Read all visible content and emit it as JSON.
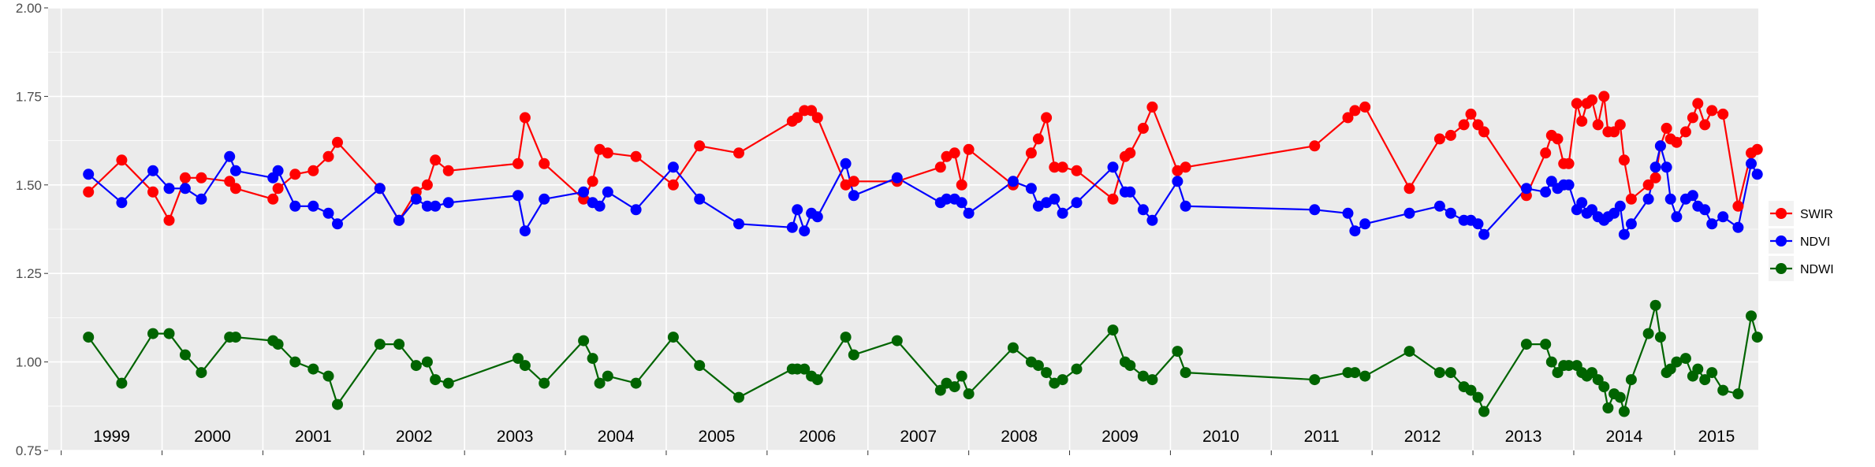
{
  "chart_data": {
    "type": "line",
    "title": "",
    "xlabel": "",
    "ylabel": "",
    "ylim": [
      0.75,
      2.0
    ],
    "yticks": [
      "0.75",
      "1.00",
      "1.25",
      "1.50",
      "1.75",
      "2.00"
    ],
    "year_labels": [
      "1999",
      "2000",
      "2001",
      "2002",
      "2003",
      "2004",
      "2005",
      "2006",
      "2007",
      "2008",
      "2009",
      "2010",
      "2011",
      "2012",
      "2013",
      "2014",
      "2015"
    ],
    "x_range": [
      1998.87,
      2015.83
    ],
    "grid": true,
    "legend_position": "right",
    "series": [
      {
        "name": "SWIR",
        "color": "#ff0000",
        "points": [
          [
            1999.27,
            1.48
          ],
          [
            1999.6,
            1.57
          ],
          [
            1999.91,
            1.48
          ],
          [
            2000.07,
            1.4
          ],
          [
            2000.23,
            1.52
          ],
          [
            2000.39,
            1.52
          ],
          [
            2000.67,
            1.51
          ],
          [
            2000.73,
            1.49
          ],
          [
            2001.1,
            1.46
          ],
          [
            2001.15,
            1.49
          ],
          [
            2001.32,
            1.53
          ],
          [
            2001.5,
            1.54
          ],
          [
            2001.65,
            1.58
          ],
          [
            2001.74,
            1.62
          ],
          [
            2002.16,
            1.49
          ],
          [
            2002.35,
            1.4
          ],
          [
            2002.52,
            1.48
          ],
          [
            2002.63,
            1.5
          ],
          [
            2002.71,
            1.57
          ],
          [
            2002.84,
            1.54
          ],
          [
            2003.53,
            1.56
          ],
          [
            2003.6,
            1.69
          ],
          [
            2003.79,
            1.56
          ],
          [
            2004.18,
            1.46
          ],
          [
            2004.27,
            1.51
          ],
          [
            2004.34,
            1.6
          ],
          [
            2004.42,
            1.59
          ],
          [
            2004.7,
            1.58
          ],
          [
            2005.07,
            1.5
          ],
          [
            2005.33,
            1.61
          ],
          [
            2005.72,
            1.59
          ],
          [
            2006.25,
            1.68
          ],
          [
            2006.3,
            1.69
          ],
          [
            2006.37,
            1.71
          ],
          [
            2006.44,
            1.71
          ],
          [
            2006.5,
            1.69
          ],
          [
            2006.78,
            1.5
          ],
          [
            2006.86,
            1.51
          ],
          [
            2007.29,
            1.51
          ],
          [
            2007.72,
            1.55
          ],
          [
            2007.78,
            1.58
          ],
          [
            2007.86,
            1.59
          ],
          [
            2007.93,
            1.5
          ],
          [
            2008.0,
            1.6
          ],
          [
            2008.44,
            1.5
          ],
          [
            2008.62,
            1.59
          ],
          [
            2008.69,
            1.63
          ],
          [
            2008.77,
            1.69
          ],
          [
            2008.85,
            1.55
          ],
          [
            2008.93,
            1.55
          ],
          [
            2009.07,
            1.54
          ],
          [
            2009.43,
            1.46
          ],
          [
            2009.55,
            1.58
          ],
          [
            2009.6,
            1.59
          ],
          [
            2009.73,
            1.66
          ],
          [
            2009.82,
            1.72
          ],
          [
            2010.07,
            1.54
          ],
          [
            2010.15,
            1.55
          ],
          [
            2011.43,
            1.61
          ],
          [
            2011.76,
            1.69
          ],
          [
            2011.83,
            1.71
          ],
          [
            2011.93,
            1.72
          ],
          [
            2012.37,
            1.49
          ],
          [
            2012.67,
            1.63
          ],
          [
            2012.78,
            1.64
          ],
          [
            2012.91,
            1.67
          ],
          [
            2012.98,
            1.7
          ],
          [
            2013.05,
            1.67
          ],
          [
            2013.11,
            1.65
          ],
          [
            2013.53,
            1.47
          ],
          [
            2013.72,
            1.59
          ],
          [
            2013.78,
            1.64
          ],
          [
            2013.84,
            1.63
          ],
          [
            2013.9,
            1.56
          ],
          [
            2013.95,
            1.56
          ],
          [
            2014.03,
            1.73
          ],
          [
            2014.08,
            1.68
          ],
          [
            2014.13,
            1.73
          ],
          [
            2014.18,
            1.74
          ],
          [
            2014.24,
            1.67
          ],
          [
            2014.3,
            1.75
          ],
          [
            2014.34,
            1.65
          ],
          [
            2014.4,
            1.65
          ],
          [
            2014.46,
            1.67
          ],
          [
            2014.5,
            1.57
          ],
          [
            2014.57,
            1.46
          ],
          [
            2014.74,
            1.5
          ],
          [
            2014.81,
            1.52
          ],
          [
            2014.86,
            1.61
          ],
          [
            2014.92,
            1.66
          ],
          [
            2014.96,
            1.63
          ],
          [
            2015.02,
            1.62
          ],
          [
            2015.11,
            1.65
          ],
          [
            2015.18,
            1.69
          ],
          [
            2015.23,
            1.73
          ],
          [
            2015.3,
            1.67
          ],
          [
            2015.37,
            1.71
          ],
          [
            2015.48,
            1.7
          ],
          [
            2015.63,
            1.44
          ],
          [
            2015.76,
            1.59
          ],
          [
            2015.82,
            1.6
          ]
        ]
      },
      {
        "name": "NDVI",
        "color": "#0000ff",
        "points": [
          [
            1999.27,
            1.53
          ],
          [
            1999.6,
            1.45
          ],
          [
            1999.91,
            1.54
          ],
          [
            2000.07,
            1.49
          ],
          [
            2000.23,
            1.49
          ],
          [
            2000.39,
            1.46
          ],
          [
            2000.67,
            1.58
          ],
          [
            2000.73,
            1.54
          ],
          [
            2001.1,
            1.52
          ],
          [
            2001.15,
            1.54
          ],
          [
            2001.32,
            1.44
          ],
          [
            2001.5,
            1.44
          ],
          [
            2001.65,
            1.42
          ],
          [
            2001.74,
            1.39
          ],
          [
            2002.16,
            1.49
          ],
          [
            2002.35,
            1.4
          ],
          [
            2002.52,
            1.46
          ],
          [
            2002.63,
            1.44
          ],
          [
            2002.71,
            1.44
          ],
          [
            2002.84,
            1.45
          ],
          [
            2003.53,
            1.47
          ],
          [
            2003.6,
            1.37
          ],
          [
            2003.79,
            1.46
          ],
          [
            2004.18,
            1.48
          ],
          [
            2004.27,
            1.45
          ],
          [
            2004.34,
            1.44
          ],
          [
            2004.42,
            1.48
          ],
          [
            2004.7,
            1.43
          ],
          [
            2005.07,
            1.55
          ],
          [
            2005.33,
            1.46
          ],
          [
            2005.72,
            1.39
          ],
          [
            2006.25,
            1.38
          ],
          [
            2006.3,
            1.43
          ],
          [
            2006.37,
            1.37
          ],
          [
            2006.44,
            1.42
          ],
          [
            2006.5,
            1.41
          ],
          [
            2006.78,
            1.56
          ],
          [
            2006.86,
            1.47
          ],
          [
            2007.29,
            1.52
          ],
          [
            2007.72,
            1.45
          ],
          [
            2007.78,
            1.46
          ],
          [
            2007.86,
            1.46
          ],
          [
            2007.93,
            1.45
          ],
          [
            2008.0,
            1.42
          ],
          [
            2008.44,
            1.51
          ],
          [
            2008.62,
            1.49
          ],
          [
            2008.69,
            1.44
          ],
          [
            2008.77,
            1.45
          ],
          [
            2008.85,
            1.46
          ],
          [
            2008.93,
            1.42
          ],
          [
            2009.07,
            1.45
          ],
          [
            2009.43,
            1.55
          ],
          [
            2009.55,
            1.48
          ],
          [
            2009.6,
            1.48
          ],
          [
            2009.73,
            1.43
          ],
          [
            2009.82,
            1.4
          ],
          [
            2010.07,
            1.51
          ],
          [
            2010.15,
            1.44
          ],
          [
            2011.43,
            1.43
          ],
          [
            2011.76,
            1.42
          ],
          [
            2011.83,
            1.37
          ],
          [
            2011.93,
            1.39
          ],
          [
            2012.37,
            1.42
          ],
          [
            2012.67,
            1.44
          ],
          [
            2012.78,
            1.42
          ],
          [
            2012.91,
            1.4
          ],
          [
            2012.98,
            1.4
          ],
          [
            2013.05,
            1.39
          ],
          [
            2013.11,
            1.36
          ],
          [
            2013.53,
            1.49
          ],
          [
            2013.72,
            1.48
          ],
          [
            2013.78,
            1.51
          ],
          [
            2013.84,
            1.49
          ],
          [
            2013.9,
            1.5
          ],
          [
            2013.95,
            1.5
          ],
          [
            2014.03,
            1.43
          ],
          [
            2014.08,
            1.45
          ],
          [
            2014.13,
            1.42
          ],
          [
            2014.18,
            1.43
          ],
          [
            2014.24,
            1.41
          ],
          [
            2014.3,
            1.4
          ],
          [
            2014.34,
            1.41
          ],
          [
            2014.4,
            1.42
          ],
          [
            2014.46,
            1.44
          ],
          [
            2014.5,
            1.36
          ],
          [
            2014.57,
            1.39
          ],
          [
            2014.74,
            1.46
          ],
          [
            2014.81,
            1.55
          ],
          [
            2014.86,
            1.61
          ],
          [
            2014.92,
            1.55
          ],
          [
            2014.96,
            1.46
          ],
          [
            2015.02,
            1.41
          ],
          [
            2015.11,
            1.46
          ],
          [
            2015.18,
            1.47
          ],
          [
            2015.23,
            1.44
          ],
          [
            2015.3,
            1.43
          ],
          [
            2015.37,
            1.39
          ],
          [
            2015.48,
            1.41
          ],
          [
            2015.63,
            1.38
          ],
          [
            2015.76,
            1.56
          ],
          [
            2015.82,
            1.53
          ]
        ]
      },
      {
        "name": "NDWI",
        "color": "#006400",
        "points": [
          [
            1999.27,
            1.07
          ],
          [
            1999.6,
            0.94
          ],
          [
            1999.91,
            1.08
          ],
          [
            2000.07,
            1.08
          ],
          [
            2000.23,
            1.02
          ],
          [
            2000.39,
            0.97
          ],
          [
            2000.67,
            1.07
          ],
          [
            2000.73,
            1.07
          ],
          [
            2001.1,
            1.06
          ],
          [
            2001.15,
            1.05
          ],
          [
            2001.32,
            1.0
          ],
          [
            2001.5,
            0.98
          ],
          [
            2001.65,
            0.96
          ],
          [
            2001.74,
            0.88
          ],
          [
            2002.16,
            1.05
          ],
          [
            2002.35,
            1.05
          ],
          [
            2002.52,
            0.99
          ],
          [
            2002.63,
            1.0
          ],
          [
            2002.71,
            0.95
          ],
          [
            2002.84,
            0.94
          ],
          [
            2003.53,
            1.01
          ],
          [
            2003.6,
            0.99
          ],
          [
            2003.79,
            0.94
          ],
          [
            2004.18,
            1.06
          ],
          [
            2004.27,
            1.01
          ],
          [
            2004.34,
            0.94
          ],
          [
            2004.42,
            0.96
          ],
          [
            2004.7,
            0.94
          ],
          [
            2005.07,
            1.07
          ],
          [
            2005.33,
            0.99
          ],
          [
            2005.72,
            0.9
          ],
          [
            2006.25,
            0.98
          ],
          [
            2006.3,
            0.98
          ],
          [
            2006.37,
            0.98
          ],
          [
            2006.44,
            0.96
          ],
          [
            2006.5,
            0.95
          ],
          [
            2006.78,
            1.07
          ],
          [
            2006.86,
            1.02
          ],
          [
            2007.29,
            1.06
          ],
          [
            2007.72,
            0.92
          ],
          [
            2007.78,
            0.94
          ],
          [
            2007.86,
            0.93
          ],
          [
            2007.93,
            0.96
          ],
          [
            2008.0,
            0.91
          ],
          [
            2008.44,
            1.04
          ],
          [
            2008.62,
            1.0
          ],
          [
            2008.69,
            0.99
          ],
          [
            2008.77,
            0.97
          ],
          [
            2008.85,
            0.94
          ],
          [
            2008.93,
            0.95
          ],
          [
            2009.07,
            0.98
          ],
          [
            2009.43,
            1.09
          ],
          [
            2009.55,
            1.0
          ],
          [
            2009.6,
            0.99
          ],
          [
            2009.73,
            0.96
          ],
          [
            2009.82,
            0.95
          ],
          [
            2010.07,
            1.03
          ],
          [
            2010.15,
            0.97
          ],
          [
            2011.43,
            0.95
          ],
          [
            2011.76,
            0.97
          ],
          [
            2011.83,
            0.97
          ],
          [
            2011.93,
            0.96
          ],
          [
            2012.37,
            1.03
          ],
          [
            2012.67,
            0.97
          ],
          [
            2012.78,
            0.97
          ],
          [
            2012.91,
            0.93
          ],
          [
            2012.98,
            0.92
          ],
          [
            2013.05,
            0.9
          ],
          [
            2013.11,
            0.86
          ],
          [
            2013.53,
            1.05
          ],
          [
            2013.72,
            1.05
          ],
          [
            2013.78,
            1.0
          ],
          [
            2013.84,
            0.97
          ],
          [
            2013.9,
            0.99
          ],
          [
            2013.95,
            0.99
          ],
          [
            2014.03,
            0.99
          ],
          [
            2014.08,
            0.97
          ],
          [
            2014.13,
            0.96
          ],
          [
            2014.18,
            0.97
          ],
          [
            2014.24,
            0.95
          ],
          [
            2014.3,
            0.93
          ],
          [
            2014.34,
            0.87
          ],
          [
            2014.4,
            0.91
          ],
          [
            2014.46,
            0.9
          ],
          [
            2014.5,
            0.86
          ],
          [
            2014.57,
            0.95
          ],
          [
            2014.74,
            1.08
          ],
          [
            2014.81,
            1.16
          ],
          [
            2014.86,
            1.07
          ],
          [
            2014.92,
            0.97
          ],
          [
            2014.96,
            0.98
          ],
          [
            2015.02,
            1.0
          ],
          [
            2015.11,
            1.01
          ],
          [
            2015.18,
            0.96
          ],
          [
            2015.23,
            0.98
          ],
          [
            2015.3,
            0.95
          ],
          [
            2015.37,
            0.97
          ],
          [
            2015.48,
            0.92
          ],
          [
            2015.63,
            0.91
          ],
          [
            2015.76,
            1.13
          ],
          [
            2015.82,
            1.07
          ]
        ]
      }
    ]
  }
}
